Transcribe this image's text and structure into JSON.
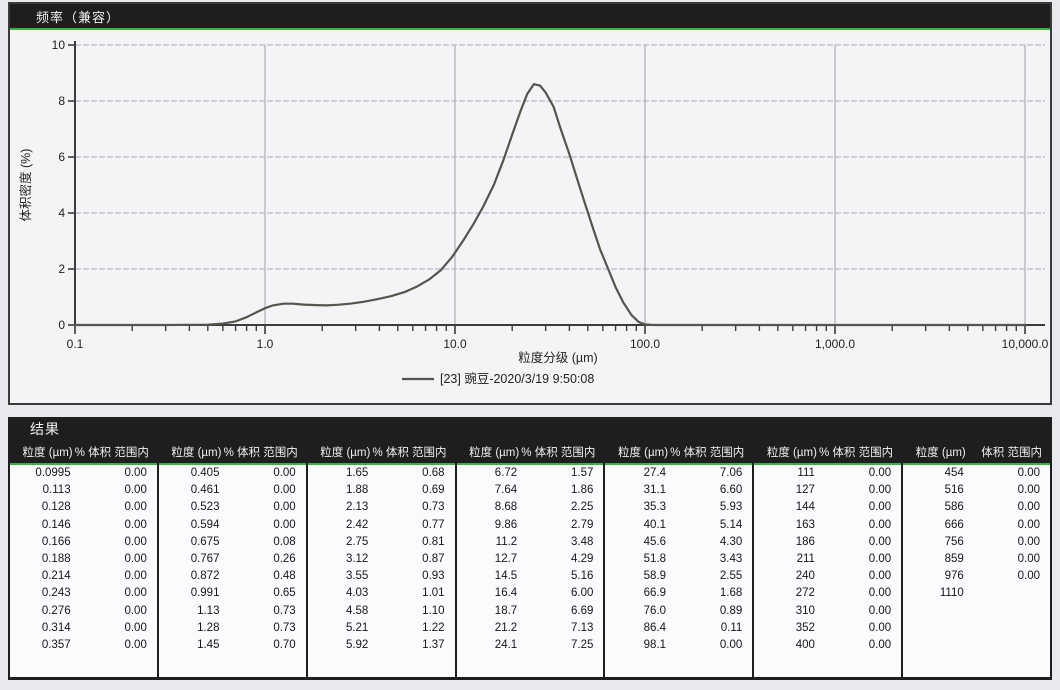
{
  "chart_panel": {
    "title": "频率（兼容）"
  },
  "chart_data": {
    "type": "line",
    "title": "频率（兼容）",
    "xlabel": "粒度分级 (µm)",
    "ylabel": "体积密度 (%)",
    "x_scale": "log",
    "xlim": [
      0.1,
      10000
    ],
    "ylim": [
      0,
      10
    ],
    "x_ticks": [
      "0.1",
      "1.0",
      "10.0",
      "100.0",
      "1,000.0",
      "10,000.0"
    ],
    "x_tick_values": [
      0.1,
      1,
      10,
      100,
      1000,
      10000
    ],
    "y_ticks": [
      "0",
      "2",
      "4",
      "6",
      "8",
      "10"
    ],
    "y_tick_values": [
      0,
      2,
      4,
      6,
      8,
      10
    ],
    "grid": true,
    "legend_position": "bottom",
    "series": [
      {
        "name": "[23] 豌豆-2020/3/19 9:50:08",
        "points": [
          [
            0.1,
            0
          ],
          [
            0.3,
            0
          ],
          [
            0.5,
            0.01
          ],
          [
            0.6,
            0.05
          ],
          [
            0.7,
            0.13
          ],
          [
            0.8,
            0.28
          ],
          [
            0.9,
            0.45
          ],
          [
            1.0,
            0.6
          ],
          [
            1.1,
            0.7
          ],
          [
            1.25,
            0.76
          ],
          [
            1.4,
            0.76
          ],
          [
            1.6,
            0.73
          ],
          [
            1.85,
            0.71
          ],
          [
            2.1,
            0.7
          ],
          [
            2.4,
            0.72
          ],
          [
            2.8,
            0.76
          ],
          [
            3.3,
            0.83
          ],
          [
            3.9,
            0.92
          ],
          [
            4.6,
            1.03
          ],
          [
            5.4,
            1.17
          ],
          [
            6.3,
            1.37
          ],
          [
            7.3,
            1.62
          ],
          [
            8.4,
            1.95
          ],
          [
            9.7,
            2.45
          ],
          [
            11,
            3.0
          ],
          [
            12.5,
            3.6
          ],
          [
            14,
            4.2
          ],
          [
            16,
            5.0
          ],
          [
            18,
            5.9
          ],
          [
            20,
            6.8
          ],
          [
            22,
            7.6
          ],
          [
            24,
            8.25
          ],
          [
            26,
            8.6
          ],
          [
            28,
            8.55
          ],
          [
            30,
            8.3
          ],
          [
            33,
            7.8
          ],
          [
            36,
            7.0
          ],
          [
            40,
            6.1
          ],
          [
            44,
            5.2
          ],
          [
            48,
            4.4
          ],
          [
            53,
            3.5
          ],
          [
            58,
            2.7
          ],
          [
            64,
            2.0
          ],
          [
            70,
            1.35
          ],
          [
            77,
            0.8
          ],
          [
            85,
            0.35
          ],
          [
            93,
            0.1
          ],
          [
            100,
            0.02
          ],
          [
            110,
            0
          ],
          [
            10000,
            0
          ]
        ]
      }
    ]
  },
  "results_panel": {
    "title": "结果",
    "size_header": "粒度 (µm)",
    "pct_header": "% 体积 范围内",
    "pct_header_last": "体积 范围内",
    "groups": [
      [
        [
          "0.0995",
          "0.00"
        ],
        [
          "0.113",
          "0.00"
        ],
        [
          "0.128",
          "0.00"
        ],
        [
          "0.146",
          "0.00"
        ],
        [
          "0.166",
          "0.00"
        ],
        [
          "0.188",
          "0.00"
        ],
        [
          "0.214",
          "0.00"
        ],
        [
          "0.243",
          "0.00"
        ],
        [
          "0.276",
          "0.00"
        ],
        [
          "0.314",
          "0.00"
        ],
        [
          "0.357",
          "0.00"
        ]
      ],
      [
        [
          "0.405",
          "0.00"
        ],
        [
          "0.461",
          "0.00"
        ],
        [
          "0.523",
          "0.00"
        ],
        [
          "0.594",
          "0.00"
        ],
        [
          "0.675",
          "0.08"
        ],
        [
          "0.767",
          "0.26"
        ],
        [
          "0.872",
          "0.48"
        ],
        [
          "0.991",
          "0.65"
        ],
        [
          "1.13",
          "0.73"
        ],
        [
          "1.28",
          "0.73"
        ],
        [
          "1.45",
          "0.70"
        ]
      ],
      [
        [
          "1.65",
          "0.68"
        ],
        [
          "1.88",
          "0.69"
        ],
        [
          "2.13",
          "0.73"
        ],
        [
          "2.42",
          "0.77"
        ],
        [
          "2.75",
          "0.81"
        ],
        [
          "3.12",
          "0.87"
        ],
        [
          "3.55",
          "0.93"
        ],
        [
          "4.03",
          "1.01"
        ],
        [
          "4.58",
          "1.10"
        ],
        [
          "5.21",
          "1.22"
        ],
        [
          "5.92",
          "1.37"
        ]
      ],
      [
        [
          "6.72",
          "1.57"
        ],
        [
          "7.64",
          "1.86"
        ],
        [
          "8.68",
          "2.25"
        ],
        [
          "9.86",
          "2.79"
        ],
        [
          "11.2",
          "3.48"
        ],
        [
          "12.7",
          "4.29"
        ],
        [
          "14.5",
          "5.16"
        ],
        [
          "16.4",
          "6.00"
        ],
        [
          "18.7",
          "6.69"
        ],
        [
          "21.2",
          "7.13"
        ],
        [
          "24.1",
          "7.25"
        ]
      ],
      [
        [
          "27.4",
          "7.06"
        ],
        [
          "31.1",
          "6.60"
        ],
        [
          "35.3",
          "5.93"
        ],
        [
          "40.1",
          "5.14"
        ],
        [
          "45.6",
          "4.30"
        ],
        [
          "51.8",
          "3.43"
        ],
        [
          "58.9",
          "2.55"
        ],
        [
          "66.9",
          "1.68"
        ],
        [
          "76.0",
          "0.89"
        ],
        [
          "86.4",
          "0.11"
        ],
        [
          "98.1",
          "0.00"
        ]
      ],
      [
        [
          "111",
          "0.00"
        ],
        [
          "127",
          "0.00"
        ],
        [
          "144",
          "0.00"
        ],
        [
          "163",
          "0.00"
        ],
        [
          "186",
          "0.00"
        ],
        [
          "211",
          "0.00"
        ],
        [
          "240",
          "0.00"
        ],
        [
          "272",
          "0.00"
        ],
        [
          "310",
          "0.00"
        ],
        [
          "352",
          "0.00"
        ],
        [
          "400",
          "0.00"
        ]
      ],
      [
        [
          "454",
          "0.00"
        ],
        [
          "516",
          "0.00"
        ],
        [
          "586",
          "0.00"
        ],
        [
          "666",
          "0.00"
        ],
        [
          "756",
          "0.00"
        ],
        [
          "859",
          "0.00"
        ],
        [
          "976",
          "0.00"
        ],
        [
          "1110",
          ""
        ]
      ]
    ]
  },
  "colors": {
    "header_bar": "#1e1e1e",
    "accent_green": "#3fae49",
    "curve": "#55554e",
    "grid_horizontal": "#b2a6c6",
    "grid_vertical": "#a0a0ac",
    "axis": "#3c3c3c",
    "tick_text": "#222222",
    "legend_line": "#55554e"
  }
}
